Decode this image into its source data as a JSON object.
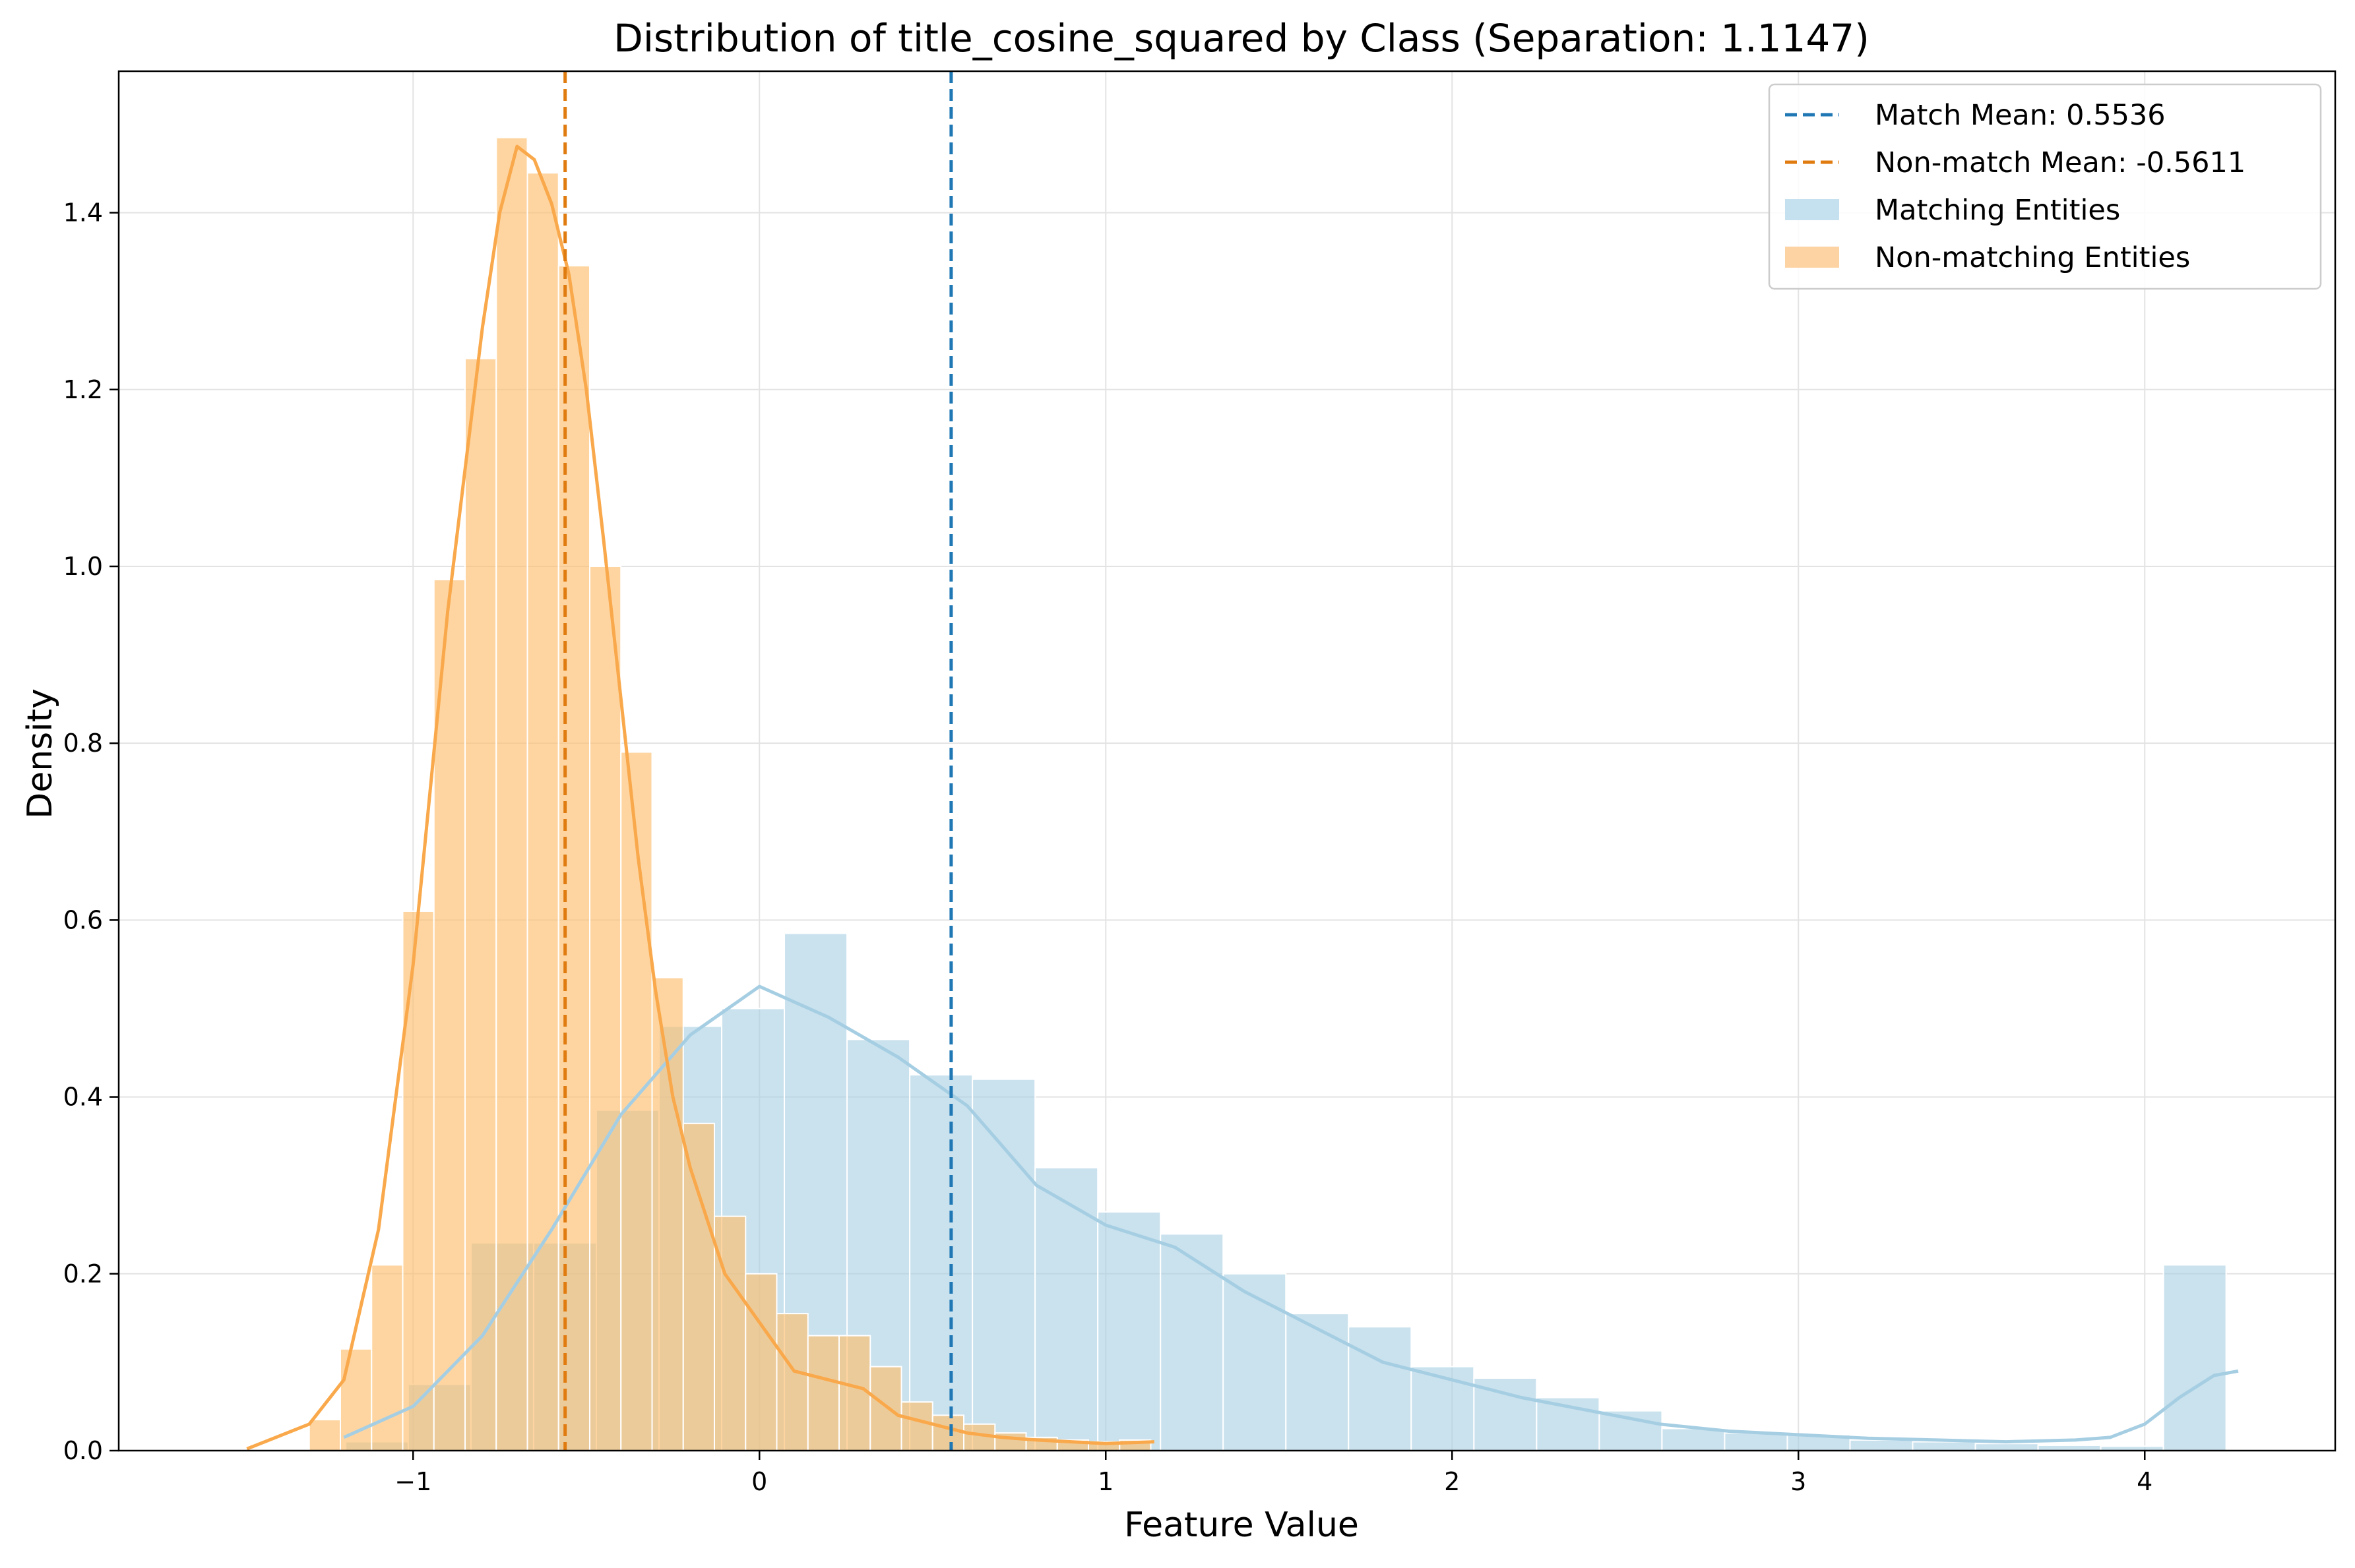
{
  "chart_data": {
    "type": "histogram",
    "title": "Distribution of title_cosine_squared by Class (Separation: 1.1147)",
    "xlabel": "Feature Value",
    "ylabel": "Density",
    "xlim": [
      -1.85,
      4.55
    ],
    "ylim": [
      0,
      1.56
    ],
    "xticks": [
      -1,
      0,
      1,
      2,
      3,
      4
    ],
    "xtick_labels": [
      "−1",
      "0",
      "1",
      "2",
      "3",
      "4"
    ],
    "yticks": [
      0.0,
      0.2,
      0.4,
      0.6,
      0.8,
      1.0,
      1.2,
      1.4
    ],
    "ytick_labels": [
      "0.0",
      "0.2",
      "0.4",
      "0.6",
      "0.8",
      "1.0",
      "1.2",
      "1.4"
    ],
    "grid": true,
    "legend_position": "top-right",
    "series": [
      {
        "name": "Matching Entities",
        "kind": "histogram",
        "color": "#a6cee3",
        "opacity": 0.6,
        "bin_edges": [
          -1.195,
          -1.014,
          -0.833,
          -0.652,
          -0.471,
          -0.29,
          -0.109,
          0.072,
          0.253,
          0.434,
          0.615,
          0.796,
          0.977,
          1.158,
          1.339,
          1.52,
          1.701,
          1.882,
          2.063,
          2.244,
          2.425,
          2.606,
          2.787,
          2.968,
          3.149,
          3.33,
          3.511,
          3.692,
          3.873,
          4.054,
          4.235
        ],
        "values": [
          0.01,
          0.075,
          0.235,
          0.235,
          0.385,
          0.48,
          0.5,
          0.585,
          0.465,
          0.425,
          0.42,
          0.32,
          0.27,
          0.245,
          0.2,
          0.155,
          0.14,
          0.095,
          0.082,
          0.06,
          0.045,
          0.025,
          0.02,
          0.018,
          0.012,
          0.01,
          0.008,
          0.006,
          0.005,
          0.21
        ]
      },
      {
        "name": "Non-matching Entities",
        "kind": "histogram",
        "color": "#fdbf6f",
        "opacity": 0.65,
        "bin_edges": [
          -1.3,
          -1.21,
          -1.12,
          -1.03,
          -0.94,
          -0.85,
          -0.76,
          -0.67,
          -0.58,
          -0.49,
          -0.4,
          -0.31,
          -0.22,
          -0.13,
          -0.04,
          0.05,
          0.14,
          0.23,
          0.32,
          0.41,
          0.5,
          0.59,
          0.68,
          0.77,
          0.86,
          0.95,
          1.04,
          1.13
        ],
        "values": [
          0.035,
          0.115,
          0.21,
          0.61,
          0.985,
          1.235,
          1.485,
          1.445,
          1.34,
          1.0,
          0.79,
          0.535,
          0.37,
          0.265,
          0.2,
          0.155,
          0.13,
          0.13,
          0.095,
          0.055,
          0.04,
          0.03,
          0.02,
          0.015,
          0.012,
          0.01,
          0.012
        ]
      },
      {
        "name": "Matching KDE",
        "kind": "line",
        "color": "#a6cee3",
        "x": [
          -1.2,
          -1.0,
          -0.8,
          -0.6,
          -0.4,
          -0.2,
          0.0,
          0.2,
          0.4,
          0.6,
          0.8,
          1.0,
          1.2,
          1.4,
          1.6,
          1.8,
          2.0,
          2.2,
          2.4,
          2.6,
          2.8,
          3.0,
          3.2,
          3.4,
          3.6,
          3.8,
          3.9,
          4.0,
          4.1,
          4.2,
          4.27
        ],
        "y": [
          0.015,
          0.05,
          0.13,
          0.25,
          0.38,
          0.47,
          0.525,
          0.49,
          0.445,
          0.39,
          0.3,
          0.255,
          0.23,
          0.18,
          0.14,
          0.1,
          0.08,
          0.06,
          0.045,
          0.03,
          0.022,
          0.018,
          0.014,
          0.012,
          0.01,
          0.012,
          0.015,
          0.03,
          0.06,
          0.085,
          0.09
        ]
      },
      {
        "name": "Non-matching KDE",
        "kind": "line",
        "color": "#f9a94b",
        "x": [
          -1.48,
          -1.3,
          -1.2,
          -1.1,
          -1.0,
          -0.9,
          -0.8,
          -0.75,
          -0.7,
          -0.65,
          -0.6,
          -0.55,
          -0.5,
          -0.45,
          -0.4,
          -0.35,
          -0.3,
          -0.25,
          -0.2,
          -0.1,
          0.0,
          0.1,
          0.2,
          0.3,
          0.4,
          0.5,
          0.6,
          0.7,
          0.8,
          0.9,
          1.0,
          1.14
        ],
        "y": [
          0.002,
          0.03,
          0.08,
          0.25,
          0.55,
          0.95,
          1.27,
          1.4,
          1.475,
          1.46,
          1.41,
          1.33,
          1.2,
          1.03,
          0.85,
          0.67,
          0.52,
          0.4,
          0.32,
          0.2,
          0.145,
          0.09,
          0.08,
          0.07,
          0.04,
          0.03,
          0.02,
          0.015,
          0.012,
          0.01,
          0.008,
          0.01
        ]
      },
      {
        "name": "Match Mean: 0.5536",
        "kind": "vline",
        "x": 0.5536,
        "color": "#1f77b4",
        "dashed": true
      },
      {
        "name": "Non-match Mean: -0.5611",
        "kind": "vline",
        "x": -0.5611,
        "color": "#e07b10",
        "dashed": true
      }
    ],
    "legend": [
      {
        "label": "Match Mean: 0.5536",
        "style": "dashed-line",
        "color": "#1f77b4"
      },
      {
        "label": "Non-match Mean: -0.5611",
        "style": "dashed-line",
        "color": "#e07b10"
      },
      {
        "label": "Matching Entities",
        "style": "patch",
        "color": "#c5e0ef"
      },
      {
        "label": "Non-matching Entities",
        "style": "patch",
        "color": "#fdd3a3"
      }
    ]
  }
}
